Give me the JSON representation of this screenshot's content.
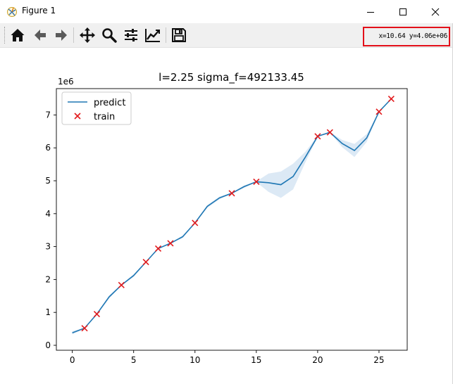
{
  "window": {
    "title": "Figure 1",
    "controls": [
      "minimize",
      "maximize",
      "close"
    ]
  },
  "toolbar": {
    "buttons": [
      {
        "name": "home",
        "icon": "home-icon"
      },
      {
        "name": "back",
        "icon": "arrow-left-icon"
      },
      {
        "name": "forward",
        "icon": "arrow-right-icon"
      },
      {
        "name": "pan",
        "icon": "move-icon"
      },
      {
        "name": "zoom",
        "icon": "magnifier-icon"
      },
      {
        "name": "subplots",
        "icon": "sliders-icon"
      },
      {
        "name": "edit-axis",
        "icon": "line-chart-icon"
      },
      {
        "name": "save",
        "icon": "floppy-disk-icon"
      }
    ],
    "coordinates": "x=10.64 y=4.06e+06"
  },
  "colors": {
    "line": "#1f77b4",
    "band": "#dce9f5",
    "marker": "#e31a1c",
    "highlight": "#e3101a"
  },
  "chart_data": {
    "type": "line",
    "title": "l=2.25 sigma_f=492133.45",
    "xlabel": "",
    "ylabel": "",
    "y_scale_label": "1e6",
    "xlim": [
      -1.3,
      27.3
    ],
    "ylim": [
      -0.15,
      7.8
    ],
    "xticks": [
      0,
      5,
      10,
      15,
      20,
      25
    ],
    "yticks": [
      0,
      1,
      2,
      3,
      4,
      5,
      6,
      7
    ],
    "legend": {
      "position": "top-left",
      "entries": [
        "predict",
        "train"
      ]
    },
    "grid": false,
    "series": [
      {
        "name": "predict",
        "kind": "line",
        "x": [
          0,
          1,
          2,
          3,
          4,
          5,
          6,
          7,
          8,
          9,
          10,
          11,
          12,
          13,
          14,
          15,
          16,
          17,
          18,
          19,
          20,
          21,
          22,
          23,
          24,
          25,
          26
        ],
        "y": [
          0.38,
          0.52,
          0.95,
          1.47,
          1.83,
          2.12,
          2.53,
          2.94,
          3.1,
          3.3,
          3.72,
          4.22,
          4.48,
          4.62,
          4.82,
          4.97,
          4.94,
          4.88,
          5.13,
          5.72,
          6.35,
          6.47,
          6.13,
          5.92,
          6.3,
          7.1,
          7.49
        ],
        "band_lower": [
          0.33,
          0.51,
          0.94,
          1.42,
          1.82,
          2.08,
          2.52,
          2.93,
          3.09,
          3.26,
          3.71,
          4.18,
          4.44,
          4.61,
          4.78,
          4.96,
          4.66,
          4.48,
          4.74,
          5.56,
          6.33,
          6.46,
          6.02,
          5.72,
          6.18,
          7.09,
          7.48
        ],
        "band_upper": [
          0.43,
          0.53,
          0.96,
          1.52,
          1.84,
          2.16,
          2.54,
          2.95,
          3.11,
          3.34,
          3.73,
          4.26,
          4.52,
          4.63,
          4.86,
          4.98,
          5.22,
          5.28,
          5.52,
          5.88,
          6.37,
          6.48,
          6.24,
          6.12,
          6.42,
          7.11,
          7.5
        ]
      },
      {
        "name": "train",
        "kind": "scatter",
        "x": [
          1,
          2,
          4,
          6,
          7,
          8,
          10,
          13,
          15,
          20,
          21,
          25,
          26
        ],
        "y": [
          0.52,
          0.95,
          1.83,
          2.53,
          2.94,
          3.1,
          3.72,
          4.62,
          4.97,
          6.35,
          6.47,
          7.1,
          7.49
        ]
      }
    ]
  }
}
